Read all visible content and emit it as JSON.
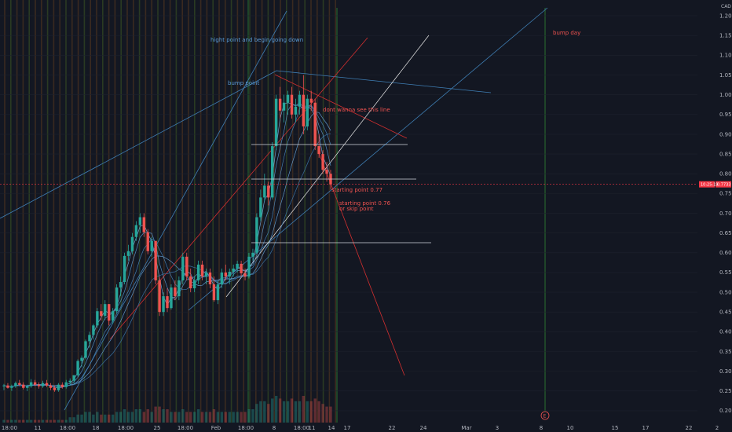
{
  "chart_data": {
    "type": "candlestick",
    "currency": "CAD",
    "ylim": [
      0.17,
      1.24
    ],
    "y_ticks": [
      "1.20",
      "1.15",
      "1.10",
      "1.05",
      "1.00",
      "0.95",
      "0.90",
      "0.85",
      "0.80",
      "0.75",
      "0.70",
      "0.65",
      "0.60",
      "0.55",
      "0.50",
      "0.45",
      "0.40",
      "0.35",
      "0.30",
      "0.25",
      "0.20"
    ],
    "x_ticks": [
      "18:00",
      "11",
      "18:00",
      "18",
      "18:00",
      "25",
      "18:00",
      "Feb",
      "18:00",
      "8",
      "18:00",
      "11",
      "14",
      "17",
      "22",
      "24",
      "Mar",
      "3",
      "8",
      "10",
      "15",
      "17",
      "22",
      "2"
    ],
    "last_price": "0.7733",
    "last_price_badge": "10:25:19",
    "event_marker": "E",
    "colors": {
      "up": "#26a69a",
      "down": "#ef5350",
      "background": "#131722",
      "price_line": "#f23645"
    },
    "candles": [
      [
        0.262,
        0.268,
        0.252,
        0.264
      ],
      [
        0.264,
        0.27,
        0.256,
        0.258
      ],
      [
        0.258,
        0.266,
        0.25,
        0.262
      ],
      [
        0.262,
        0.274,
        0.258,
        0.27
      ],
      [
        0.27,
        0.278,
        0.262,
        0.266
      ],
      [
        0.266,
        0.272,
        0.254,
        0.258
      ],
      [
        0.258,
        0.266,
        0.25,
        0.262
      ],
      [
        0.262,
        0.28,
        0.258,
        0.272
      ],
      [
        0.272,
        0.278,
        0.262,
        0.266
      ],
      [
        0.266,
        0.272,
        0.256,
        0.262
      ],
      [
        0.262,
        0.276,
        0.258,
        0.27
      ],
      [
        0.27,
        0.278,
        0.26,
        0.264
      ],
      [
        0.264,
        0.27,
        0.252,
        0.258
      ],
      [
        0.258,
        0.264,
        0.248,
        0.252
      ],
      [
        0.252,
        0.27,
        0.248,
        0.266
      ],
      [
        0.266,
        0.272,
        0.256,
        0.26
      ],
      [
        0.26,
        0.278,
        0.256,
        0.272
      ],
      [
        0.272,
        0.282,
        0.264,
        0.276
      ],
      [
        0.276,
        0.288,
        0.268,
        0.29
      ],
      [
        0.29,
        0.33,
        0.286,
        0.326
      ],
      [
        0.326,
        0.34,
        0.31,
        0.334
      ],
      [
        0.334,
        0.38,
        0.33,
        0.376
      ],
      [
        0.376,
        0.4,
        0.36,
        0.392
      ],
      [
        0.392,
        0.42,
        0.38,
        0.416
      ],
      [
        0.416,
        0.46,
        0.41,
        0.452
      ],
      [
        0.452,
        0.47,
        0.428,
        0.44
      ],
      [
        0.44,
        0.48,
        0.43,
        0.47
      ],
      [
        0.47,
        0.47,
        0.416,
        0.428
      ],
      [
        0.428,
        0.46,
        0.42,
        0.452
      ],
      [
        0.452,
        0.52,
        0.446,
        0.512
      ],
      [
        0.512,
        0.54,
        0.49,
        0.526
      ],
      [
        0.526,
        0.6,
        0.52,
        0.592
      ],
      [
        0.592,
        0.62,
        0.58,
        0.604
      ],
      [
        0.604,
        0.65,
        0.596,
        0.64
      ],
      [
        0.64,
        0.68,
        0.63,
        0.67
      ],
      [
        0.67,
        0.7,
        0.65,
        0.69
      ],
      [
        0.69,
        0.7,
        0.64,
        0.652
      ],
      [
        0.652,
        0.66,
        0.596,
        0.604
      ],
      [
        0.604,
        0.64,
        0.59,
        0.63
      ],
      [
        0.63,
        0.63,
        0.52,
        0.53
      ],
      [
        0.53,
        0.54,
        0.44,
        0.45
      ],
      [
        0.45,
        0.5,
        0.44,
        0.49
      ],
      [
        0.49,
        0.51,
        0.45,
        0.46
      ],
      [
        0.46,
        0.52,
        0.456,
        0.512
      ],
      [
        0.512,
        0.53,
        0.48,
        0.49
      ],
      [
        0.49,
        0.54,
        0.48,
        0.53
      ],
      [
        0.53,
        0.6,
        0.52,
        0.59
      ],
      [
        0.59,
        0.6,
        0.53,
        0.54
      ],
      [
        0.54,
        0.56,
        0.5,
        0.51
      ],
      [
        0.51,
        0.54,
        0.5,
        0.53
      ],
      [
        0.53,
        0.58,
        0.52,
        0.57
      ],
      [
        0.57,
        0.58,
        0.53,
        0.54
      ],
      [
        0.54,
        0.56,
        0.52,
        0.55
      ],
      [
        0.55,
        0.56,
        0.51,
        0.52
      ],
      [
        0.52,
        0.54,
        0.476,
        0.48
      ],
      [
        0.48,
        0.53,
        0.47,
        0.52
      ],
      [
        0.52,
        0.56,
        0.51,
        0.55
      ],
      [
        0.55,
        0.57,
        0.53,
        0.54
      ],
      [
        0.54,
        0.56,
        0.52,
        0.552
      ],
      [
        0.552,
        0.57,
        0.54,
        0.56
      ],
      [
        0.56,
        0.58,
        0.55,
        0.572
      ],
      [
        0.572,
        0.58,
        0.54,
        0.548
      ],
      [
        0.548,
        0.56,
        0.53,
        0.54
      ],
      [
        0.54,
        0.6,
        0.535,
        0.59
      ],
      [
        0.59,
        0.61,
        0.58,
        0.6
      ],
      [
        0.6,
        0.7,
        0.596,
        0.69
      ],
      [
        0.69,
        0.76,
        0.68,
        0.74
      ],
      [
        0.74,
        0.8,
        0.73,
        0.77
      ],
      [
        0.77,
        0.78,
        0.72,
        0.74
      ],
      [
        0.74,
        0.88,
        0.735,
        0.87
      ],
      [
        0.87,
        1.0,
        0.86,
        0.99
      ],
      [
        0.99,
        1.02,
        0.94,
        0.96
      ],
      [
        0.96,
        1.0,
        0.93,
        0.98
      ],
      [
        0.98,
        1.01,
        0.95,
        1.0
      ],
      [
        1.0,
        1.02,
        0.94,
        0.95
      ],
      [
        0.95,
        0.99,
        0.93,
        0.97
      ],
      [
        0.97,
        1.01,
        0.95,
        1.0
      ],
      [
        1.0,
        1.05,
        0.9,
        0.92
      ],
      [
        0.92,
        1.0,
        0.91,
        0.99
      ],
      [
        0.99,
        1.01,
        0.96,
        0.98
      ],
      [
        0.98,
        0.99,
        0.86,
        0.87
      ],
      [
        0.87,
        0.9,
        0.84,
        0.85
      ],
      [
        0.85,
        0.86,
        0.8,
        0.81
      ],
      [
        0.81,
        0.83,
        0.78,
        0.8
      ],
      [
        0.8,
        0.81,
        0.76,
        0.773
      ]
    ],
    "volumes": [
      0.1,
      0.1,
      0.1,
      0.1,
      0.1,
      0.1,
      0.1,
      0.1,
      0.1,
      0.1,
      0.1,
      0.1,
      0.1,
      0.1,
      0.1,
      0.1,
      0.1,
      0.2,
      0.2,
      0.3,
      0.3,
      0.4,
      0.4,
      0.3,
      0.4,
      0.3,
      0.3,
      0.3,
      0.3,
      0.4,
      0.4,
      0.5,
      0.4,
      0.4,
      0.5,
      0.5,
      0.4,
      0.5,
      0.4,
      0.6,
      0.6,
      0.5,
      0.5,
      0.4,
      0.4,
      0.4,
      0.5,
      0.4,
      0.4,
      0.4,
      0.5,
      0.4,
      0.4,
      0.4,
      0.5,
      0.4,
      0.4,
      0.4,
      0.4,
      0.4,
      0.4,
      0.4,
      0.4,
      0.5,
      0.5,
      0.7,
      0.8,
      0.8,
      0.7,
      0.9,
      1.0,
      0.9,
      0.8,
      0.8,
      0.9,
      0.8,
      0.8,
      1.0,
      0.8,
      0.8,
      0.9,
      0.8,
      0.7,
      0.6,
      0.6
    ],
    "annotations": [
      {
        "text": "hight point and begin going down",
        "color": "#5b9bd5"
      },
      {
        "text": "bump point",
        "color": "#5b9bd5"
      },
      {
        "text": "dont wanna see this line",
        "color": "#ef5350"
      },
      {
        "text": "starting  point 0.77",
        "color": "#ef5350"
      },
      {
        "text": "starting point 0.76",
        "color": "#ef5350"
      },
      {
        "text": "or skip point",
        "color": "#ef5350"
      },
      {
        "text": "bump day",
        "color": "#ef5350"
      }
    ]
  }
}
